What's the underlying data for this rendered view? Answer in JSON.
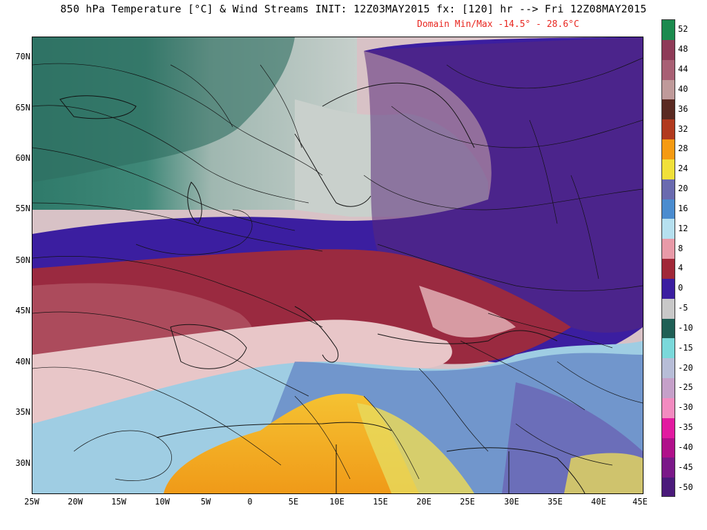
{
  "header": {
    "title": "850 hPa Temperature [°C] & Wind Streams INIT: 12Z03MAY2015 fx: [120] hr --> Fri 12Z08MAY2015",
    "subtitle": "Domain Min/Max -14.5° -  28.6°C"
  },
  "map": {
    "lat_labels": [
      "70N",
      "65N",
      "60N",
      "55N",
      "50N",
      "45N",
      "40N",
      "35N",
      "30N"
    ],
    "lon_labels": [
      "25W",
      "20W",
      "15W",
      "10W",
      "5W",
      "0",
      "5E",
      "10E",
      "15E",
      "20E",
      "25E",
      "30E",
      "35E",
      "40E",
      "45E"
    ],
    "temperature_zones": [
      {
        "name": "arctic-airmass-north-atlantic",
        "color": "#2f7a6a"
      },
      {
        "name": "cool-airmass",
        "color": "#a9bdb6"
      },
      {
        "name": "near-zero-band",
        "color": "#c9d0cc"
      },
      {
        "name": "freezing-band",
        "color": "#3e1ea0"
      },
      {
        "name": "mild-band",
        "color": "#8a2a3a"
      },
      {
        "name": "warm-band",
        "color": "#c87a80"
      },
      {
        "name": "warmer-band",
        "color": "#f1d7d6"
      },
      {
        "name": "hot-band",
        "color": "#7fb3d9"
      },
      {
        "name": "very-hot-africa",
        "color": "#f2a623"
      }
    ]
  },
  "colorbar": {
    "labels": [
      "52",
      "48",
      "44",
      "40",
      "36",
      "32",
      "28",
      "24",
      "20",
      "16",
      "12",
      "8",
      "4",
      "0",
      "-5",
      "-10",
      "-15",
      "-20",
      "-25",
      "-30",
      "-35",
      "-40",
      "-45",
      "-50"
    ],
    "colors": [
      "#1b8a4e",
      "#8e3b58",
      "#a86074",
      "#bf9a9a",
      "#5a2a22",
      "#b13a1f",
      "#f59a12",
      "#f1e03a",
      "#6a6aaf",
      "#4a8ccf",
      "#b6e0ef",
      "#e89aa8",
      "#a02838",
      "#3b1ea0",
      "#c8c8c8",
      "#1f5f55",
      "#7ad8da",
      "#b7bdd7",
      "#c5a0c9",
      "#f28bc0",
      "#e21aa0",
      "#b0108a",
      "#7a1888",
      "#4a1a7a"
    ]
  }
}
